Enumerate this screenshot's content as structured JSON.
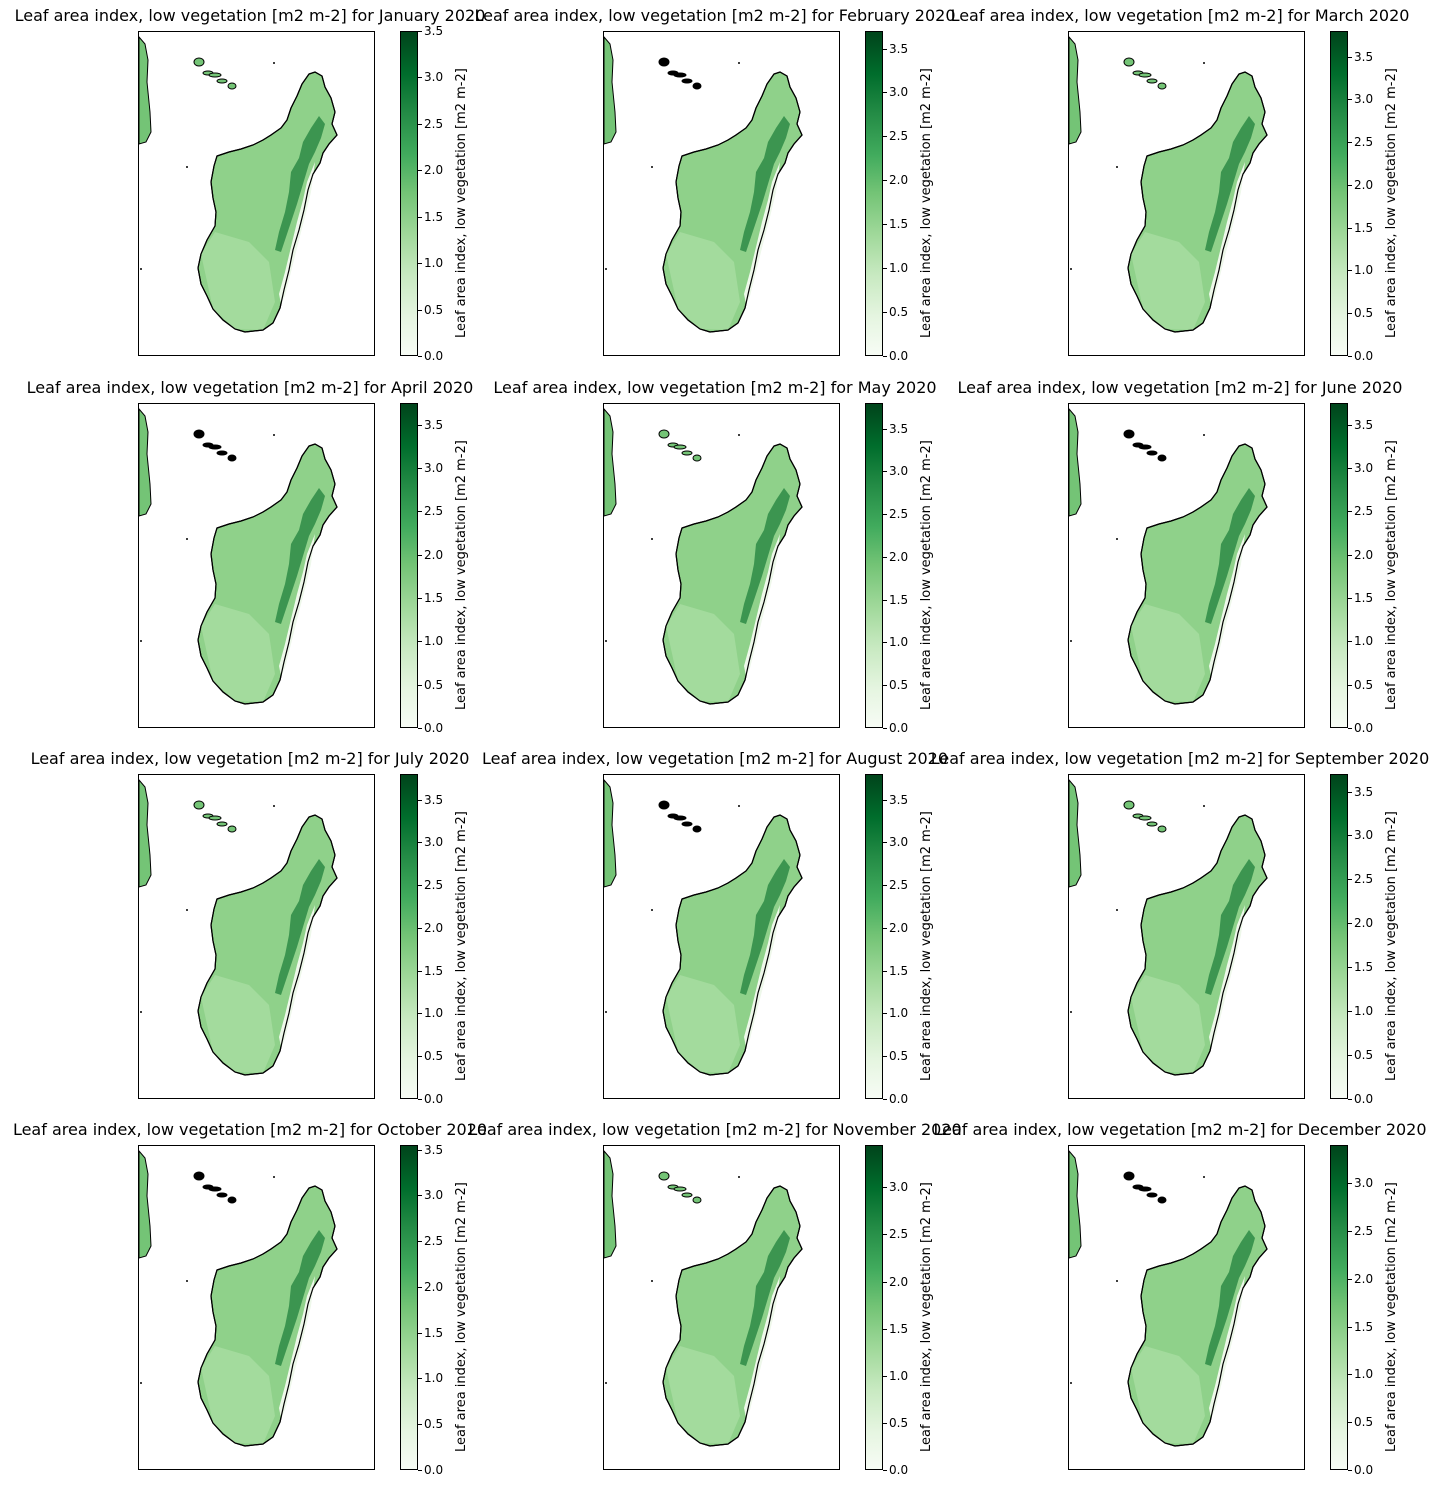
{
  "colormap": [
    "#f7fcf5",
    "#c7e9c0",
    "#74c476",
    "#238b45",
    "#00441b"
  ],
  "colorbar_label": "Leaf area index, low vegetation [m2 m-2]",
  "panels": [
    {
      "title": "Leaf area index, low vegetation [m2 m-2] for January 2020",
      "vmax": 3.5,
      "ticks": [
        "0.0",
        "0.5",
        "1.0",
        "1.5",
        "2.0",
        "2.5",
        "3.0",
        "3.5"
      ]
    },
    {
      "title": "Leaf area index, low vegetation [m2 m-2] for February 2020",
      "vmax": 3.7,
      "ticks": [
        "0.0",
        "0.5",
        "1.0",
        "1.5",
        "2.0",
        "2.5",
        "3.0",
        "3.5"
      ]
    },
    {
      "title": "Leaf area index, low vegetation [m2 m-2] for March 2020",
      "vmax": 3.8,
      "ticks": [
        "0.0",
        "0.5",
        "1.0",
        "1.5",
        "2.0",
        "2.5",
        "3.0",
        "3.5"
      ]
    },
    {
      "title": "Leaf area index, low vegetation [m2 m-2] for April 2020",
      "vmax": 3.75,
      "ticks": [
        "0.0",
        "0.5",
        "1.0",
        "1.5",
        "2.0",
        "2.5",
        "3.0",
        "3.5"
      ]
    },
    {
      "title": "Leaf area index, low vegetation [m2 m-2] for May 2020",
      "vmax": 3.8,
      "ticks": [
        "0.0",
        "0.5",
        "1.0",
        "1.5",
        "2.0",
        "2.5",
        "3.0",
        "3.5"
      ]
    },
    {
      "title": "Leaf area index, low vegetation [m2 m-2] for June 2020",
      "vmax": 3.75,
      "ticks": [
        "0.0",
        "0.5",
        "1.0",
        "1.5",
        "2.0",
        "2.5",
        "3.0",
        "3.5"
      ]
    },
    {
      "title": "Leaf area index, low vegetation [m2 m-2] for July 2020",
      "vmax": 3.8,
      "ticks": [
        "0.0",
        "0.5",
        "1.0",
        "1.5",
        "2.0",
        "2.5",
        "3.0",
        "3.5"
      ]
    },
    {
      "title": "Leaf area index, low vegetation [m2 m-2] for August 2020",
      "vmax": 3.8,
      "ticks": [
        "0.0",
        "0.5",
        "1.0",
        "1.5",
        "2.0",
        "2.5",
        "3.0",
        "3.5"
      ]
    },
    {
      "title": "Leaf area index, low vegetation [m2 m-2] for September 2020",
      "vmax": 3.7,
      "ticks": [
        "0.0",
        "0.5",
        "1.0",
        "1.5",
        "2.0",
        "2.5",
        "3.0",
        "3.5"
      ]
    },
    {
      "title": "Leaf area index, low vegetation [m2 m-2] for October 2020",
      "vmax": 3.55,
      "ticks": [
        "0.0",
        "0.5",
        "1.0",
        "1.5",
        "2.0",
        "2.5",
        "3.0",
        "3.5"
      ]
    },
    {
      "title": "Leaf area index, low vegetation [m2 m-2] for November 2020",
      "vmax": 3.45,
      "ticks": [
        "0.0",
        "0.5",
        "1.0",
        "1.5",
        "2.0",
        "2.5",
        "3.0"
      ]
    },
    {
      "title": "Leaf area index, low vegetation [m2 m-2] for December 2020",
      "vmax": 3.4,
      "ticks": [
        "0.0",
        "0.5",
        "1.0",
        "1.5",
        "2.0",
        "2.5",
        "3.0"
      ]
    }
  ]
}
